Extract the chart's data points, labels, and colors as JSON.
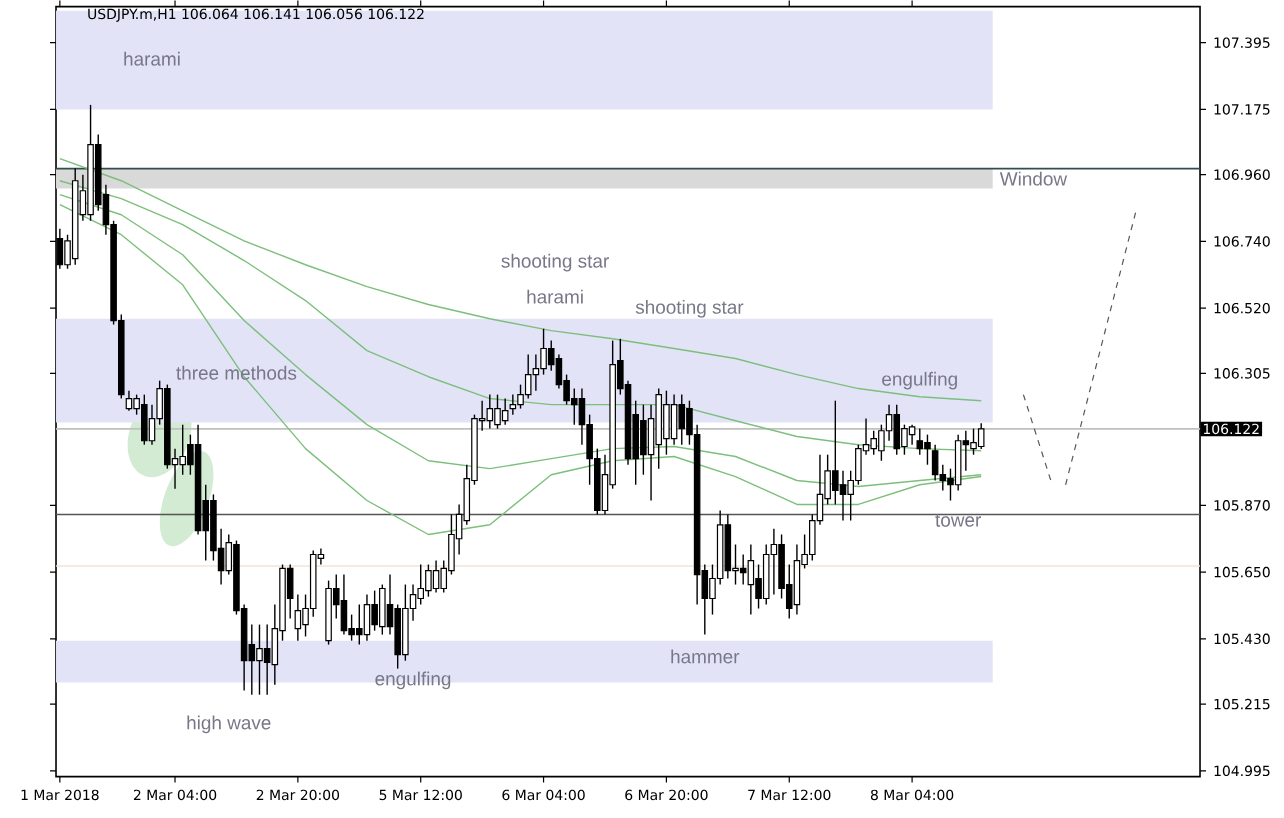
{
  "chart_data": {
    "type": "candlestick",
    "title": "USDJPY.m,H1  106.064 106.141 106.056 106.122",
    "categories": [
      "1 Mar 2018",
      null,
      null,
      null,
      null,
      null,
      null,
      null,
      null,
      null,
      null,
      null,
      null,
      null,
      null,
      "2 Mar 04:00",
      null,
      null,
      null,
      null,
      null,
      null,
      null,
      null,
      null,
      null,
      null,
      null,
      null,
      null,
      null,
      "2 Mar 20:00",
      null,
      null,
      null,
      null,
      null,
      null,
      null,
      null,
      null,
      null,
      null,
      null,
      null,
      null,
      null,
      "5 Mar 12:00",
      null,
      null,
      null,
      null,
      null,
      null,
      null,
      null,
      null,
      null,
      null,
      null,
      null,
      null,
      null,
      "6 Mar 04:00",
      null,
      null,
      null,
      null,
      null,
      null,
      null,
      null,
      null,
      null,
      null,
      null,
      null,
      null,
      null,
      "6 Mar 20:00",
      null,
      null,
      null,
      null,
      null,
      null,
      null,
      null,
      null,
      null,
      null,
      null,
      null,
      null,
      null,
      "7 Mar 12:00",
      null,
      null,
      null,
      null,
      null,
      null,
      null,
      null,
      null,
      null,
      null,
      null,
      null,
      null,
      null,
      "8 Mar 04:00",
      null,
      null,
      null,
      null,
      null,
      null,
      null,
      null,
      null,
      null,
      null,
      null,
      null,
      null,
      null,
      null,
      null,
      null,
      null,
      null,
      null,
      null,
      null,
      null,
      null,
      null,
      null,
      null,
      null,
      null,
      null,
      null,
      null,
      null,
      null,
      null,
      null
    ],
    "ohlc": [
      [
        106.749,
        106.782,
        106.65,
        106.663
      ],
      [
        106.663,
        106.762,
        106.65,
        106.742
      ],
      [
        106.683,
        106.98,
        106.663,
        106.94
      ],
      [
        106.828,
        106.96,
        106.808,
        106.907
      ],
      [
        106.828,
        107.19,
        106.808,
        107.059
      ],
      [
        107.059,
        107.092,
        106.841,
        106.861
      ],
      [
        106.894,
        106.927,
        106.762,
        106.795
      ],
      [
        106.795,
        106.808,
        106.466,
        106.479
      ],
      [
        106.479,
        106.499,
        106.222,
        106.235
      ],
      [
        106.189,
        106.248,
        106.182,
        106.222
      ],
      [
        106.189,
        106.235,
        106.169,
        106.222
      ],
      [
        106.202,
        106.235,
        106.07,
        106.083
      ],
      [
        106.083,
        106.202,
        106.07,
        106.156
      ],
      [
        106.156,
        106.281,
        106.136,
        106.255
      ],
      [
        106.255,
        106.268,
        105.991,
        106.004
      ],
      [
        106.004,
        106.057,
        105.925,
        106.024
      ],
      [
        106.004,
        106.136,
        105.971,
        106.031
      ],
      [
        106.07,
        106.103,
        105.971,
        106.004
      ],
      [
        106.07,
        106.136,
        105.774,
        105.787
      ],
      [
        105.886,
        105.938,
        105.688,
        105.787
      ],
      [
        105.886,
        105.906,
        105.688,
        105.721
      ],
      [
        105.728,
        105.793,
        105.609,
        105.655
      ],
      [
        105.655,
        105.774,
        105.642,
        105.747
      ],
      [
        105.741,
        105.754,
        105.51,
        105.523
      ],
      [
        105.53,
        105.543,
        105.26,
        105.358
      ],
      [
        105.411,
        105.477,
        105.246,
        105.358
      ],
      [
        105.358,
        105.477,
        105.246,
        105.398
      ],
      [
        105.398,
        105.477,
        105.246,
        105.352
      ],
      [
        105.345,
        105.543,
        105.279,
        105.464
      ],
      [
        105.457,
        105.675,
        105.424,
        105.662
      ],
      [
        105.662,
        105.675,
        105.497,
        105.563
      ],
      [
        105.464,
        105.576,
        105.424,
        105.523
      ],
      [
        105.477,
        105.576,
        105.438,
        105.53
      ],
      [
        105.53,
        105.721,
        105.503,
        105.708
      ],
      [
        105.695,
        105.728,
        105.675,
        105.708
      ],
      [
        105.424,
        105.622,
        105.411,
        105.596
      ],
      [
        105.596,
        105.642,
        105.497,
        105.543
      ],
      [
        105.556,
        105.642,
        105.444,
        105.457
      ],
      [
        105.464,
        105.51,
        105.424,
        105.444
      ],
      [
        105.464,
        105.543,
        105.411,
        105.444
      ],
      [
        105.444,
        105.576,
        105.424,
        105.543
      ],
      [
        105.543,
        105.589,
        105.457,
        105.477
      ],
      [
        105.47,
        105.609,
        105.444,
        105.596
      ],
      [
        105.543,
        105.642,
        105.444,
        105.47
      ],
      [
        105.53,
        105.543,
        105.332,
        105.378
      ],
      [
        105.378,
        105.609,
        105.358,
        105.53
      ],
      [
        105.53,
        105.609,
        105.49,
        105.576
      ],
      [
        105.563,
        105.675,
        105.543,
        105.596
      ],
      [
        105.589,
        105.675,
        105.569,
        105.655
      ],
      [
        105.596,
        105.688,
        105.583,
        105.655
      ],
      [
        105.596,
        105.688,
        105.583,
        105.662
      ],
      [
        105.655,
        105.84,
        105.642,
        105.774
      ],
      [
        105.76,
        105.873,
        105.708,
        105.84
      ],
      [
        105.82,
        106.004,
        105.806,
        105.958
      ],
      [
        105.952,
        106.169,
        105.938,
        106.156
      ],
      [
        106.149,
        106.215,
        106.116,
        106.156
      ],
      [
        106.149,
        106.235,
        106.123,
        106.189
      ],
      [
        106.136,
        106.235,
        106.123,
        106.189
      ],
      [
        106.149,
        106.222,
        106.136,
        106.182
      ],
      [
        106.189,
        106.235,
        106.169,
        106.202
      ],
      [
        106.202,
        106.268,
        106.189,
        106.235
      ],
      [
        106.235,
        106.367,
        106.222,
        106.301
      ],
      [
        106.301,
        106.367,
        106.248,
        106.321
      ],
      [
        106.321,
        106.452,
        106.301,
        106.387
      ],
      [
        106.387,
        106.413,
        106.314,
        106.334
      ],
      [
        106.354,
        106.367,
        106.255,
        106.268
      ],
      [
        106.281,
        106.301,
        106.202,
        106.215
      ],
      [
        106.222,
        106.255,
        106.136,
        106.202
      ],
      [
        106.222,
        106.255,
        106.07,
        106.136
      ],
      [
        106.136,
        106.169,
        105.938,
        106.024
      ],
      [
        106.024,
        106.057,
        105.84,
        105.853
      ],
      [
        105.853,
        106.037,
        105.84,
        105.971
      ],
      [
        105.938,
        106.413,
        105.925,
        106.334
      ],
      [
        106.347,
        106.419,
        106.235,
        106.255
      ],
      [
        106.268,
        106.281,
        106.004,
        106.024
      ],
      [
        106.169,
        106.215,
        105.938,
        106.024
      ],
      [
        106.149,
        106.202,
        105.971,
        106.037
      ],
      [
        106.037,
        106.202,
        105.886,
        106.156
      ],
      [
        106.07,
        106.255,
        105.991,
        106.235
      ],
      [
        106.09,
        106.248,
        106.037,
        106.202
      ],
      [
        106.09,
        106.235,
        106.07,
        106.202
      ],
      [
        106.202,
        106.235,
        106.07,
        106.123
      ],
      [
        106.189,
        106.215,
        106.07,
        106.103
      ],
      [
        106.103,
        106.136,
        105.543,
        105.642
      ],
      [
        105.655,
        105.675,
        105.444,
        105.563
      ],
      [
        105.563,
        105.675,
        105.51,
        105.629
      ],
      [
        105.629,
        105.853,
        105.609,
        105.806
      ],
      [
        105.806,
        105.84,
        105.629,
        105.655
      ],
      [
        105.655,
        105.741,
        105.609,
        105.662
      ],
      [
        105.662,
        105.708,
        105.609,
        105.648
      ],
      [
        105.609,
        105.741,
        105.51,
        105.688
      ],
      [
        105.629,
        105.675,
        105.53,
        105.563
      ],
      [
        105.563,
        105.741,
        105.543,
        105.708
      ],
      [
        105.708,
        105.793,
        105.576,
        105.741
      ],
      [
        105.741,
        105.774,
        105.563,
        105.596
      ],
      [
        105.609,
        105.675,
        105.497,
        105.53
      ],
      [
        105.543,
        105.741,
        105.51,
        105.688
      ],
      [
        105.675,
        105.774,
        105.662,
        105.708
      ],
      [
        105.708,
        105.84,
        105.688,
        105.82
      ],
      [
        105.82,
        106.037,
        105.806,
        105.906
      ],
      [
        105.892,
        106.037,
        105.873,
        105.984
      ],
      [
        105.984,
        106.215,
        105.873,
        105.919
      ],
      [
        105.938,
        105.984,
        105.82,
        105.906
      ],
      [
        105.906,
        105.984,
        105.82,
        105.952
      ],
      [
        105.952,
        106.07,
        105.938,
        106.057
      ],
      [
        106.05,
        106.156,
        106.037,
        106.07
      ],
      [
        106.057,
        106.116,
        106.037,
        106.09
      ],
      [
        106.05,
        106.136,
        106.017,
        106.116
      ],
      [
        106.116,
        106.202,
        106.083,
        106.169
      ],
      [
        106.169,
        106.202,
        106.037,
        106.057
      ],
      [
        106.064,
        106.136,
        106.037,
        106.123
      ],
      [
        106.103,
        106.136,
        106.07,
        106.129
      ],
      [
        106.083,
        106.123,
        106.037,
        106.057
      ],
      [
        106.077,
        106.103,
        106.004,
        106.057
      ],
      [
        106.05,
        106.07,
        105.952,
        105.971
      ],
      [
        105.971,
        106.004,
        105.919,
        105.952
      ],
      [
        105.958,
        105.991,
        105.886,
        105.938
      ],
      [
        105.938,
        106.103,
        105.919,
        106.083
      ],
      [
        106.083,
        106.116,
        105.984,
        106.07
      ],
      [
        106.057,
        106.123,
        106.037,
        106.077
      ],
      [
        106.064,
        106.141,
        106.056,
        106.122
      ],
      null,
      null,
      null,
      null,
      null,
      null,
      null,
      null,
      null,
      null,
      null,
      null,
      null,
      null,
      null,
      null,
      null,
      null,
      null,
      null,
      null,
      null,
      null,
      null,
      null,
      null,
      null,
      null
    ],
    "series": [
      {
        "type": "line",
        "color": "#7cbf7c",
        "values": [
          107.013,
          null,
          null,
          null,
          null,
          null,
          null,
          null,
          106.94,
          null,
          null,
          null,
          null,
          null,
          null,
          null,
          106.841,
          null,
          null,
          null,
          null,
          null,
          null,
          null,
          106.742,
          null,
          null,
          null,
          null,
          null,
          null,
          null,
          106.663,
          null,
          null,
          null,
          null,
          null,
          null,
          null,
          106.591,
          null,
          null,
          null,
          null,
          null,
          null,
          null,
          106.532,
          null,
          null,
          null,
          null,
          null,
          null,
          null,
          106.485,
          null,
          null,
          null,
          null,
          null,
          null,
          null,
          106.446,
          null,
          null,
          null,
          null,
          null,
          null,
          null,
          106.419,
          null,
          null,
          null,
          null,
          null,
          null,
          null,
          106.387,
          null,
          null,
          null,
          null,
          null,
          null,
          null,
          106.354,
          null,
          null,
          null,
          null,
          null,
          null,
          null,
          106.301,
          null,
          null,
          null,
          null,
          null,
          null,
          null,
          106.255,
          null,
          null,
          null,
          null,
          null,
          null,
          null,
          106.228,
          null,
          null,
          null,
          null,
          null,
          null,
          null,
          106.215,
          null,
          null,
          null,
          null,
          null,
          null,
          null,
          null,
          null,
          null,
          null,
          null,
          null,
          null,
          null,
          null,
          null,
          null,
          null,
          null,
          null,
          null,
          null,
          null,
          null,
          null,
          null,
          null
        ]
      },
      {
        "type": "line",
        "color": "#7cbf7c",
        "values": [
          106.94,
          null,
          null,
          null,
          null,
          null,
          null,
          null,
          106.881,
          null,
          null,
          null,
          null,
          null,
          null,
          null,
          106.795,
          null,
          null,
          null,
          null,
          null,
          null,
          null,
          106.677,
          null,
          null,
          null,
          null,
          null,
          null,
          null,
          106.545,
          null,
          null,
          null,
          null,
          null,
          null,
          null,
          106.38,
          null,
          null,
          null,
          null,
          null,
          null,
          null,
          106.294,
          null,
          null,
          null,
          null,
          null,
          null,
          null,
          106.222,
          null,
          null,
          null,
          null,
          null,
          null,
          null,
          106.202,
          null,
          null,
          null,
          null,
          null,
          null,
          null,
          106.202,
          null,
          null,
          null,
          null,
          null,
          null,
          null,
          106.202,
          null,
          null,
          null,
          null,
          null,
          null,
          null,
          106.149,
          null,
          null,
          null,
          null,
          null,
          null,
          null,
          106.097,
          null,
          null,
          null,
          null,
          null,
          null,
          null,
          106.07,
          null,
          null,
          null,
          null,
          null,
          null,
          null,
          106.057,
          null,
          null,
          null,
          null,
          null,
          null,
          null,
          106.05,
          null,
          null,
          null,
          null,
          null,
          null,
          null,
          null,
          null,
          null,
          null,
          null,
          null,
          null,
          null,
          null,
          null,
          null,
          null,
          null,
          null,
          null,
          null,
          null,
          null,
          null,
          null,
          null
        ]
      },
      {
        "type": "line",
        "color": "#7cbf7c",
        "values": [
          106.894,
          null,
          null,
          null,
          null,
          null,
          null,
          null,
          106.828,
          null,
          null,
          null,
          null,
          null,
          null,
          null,
          106.696,
          null,
          null,
          null,
          null,
          null,
          null,
          null,
          106.479,
          null,
          null,
          null,
          null,
          null,
          null,
          null,
          106.301,
          null,
          null,
          null,
          null,
          null,
          null,
          null,
          106.136,
          null,
          null,
          null,
          null,
          null,
          null,
          null,
          106.017,
          null,
          null,
          null,
          null,
          null,
          null,
          null,
          105.991,
          null,
          null,
          null,
          null,
          null,
          null,
          null,
          106.024,
          null,
          null,
          null,
          null,
          null,
          null,
          null,
          106.057,
          null,
          null,
          null,
          null,
          null,
          null,
          null,
          106.064,
          null,
          null,
          null,
          null,
          null,
          null,
          null,
          106.031,
          null,
          null,
          null,
          null,
          null,
          null,
          null,
          105.952,
          null,
          null,
          null,
          null,
          null,
          null,
          null,
          105.932,
          null,
          null,
          null,
          null,
          null,
          null,
          null,
          105.952,
          null,
          null,
          null,
          null,
          null,
          null,
          null,
          105.971,
          null,
          null,
          null,
          null,
          null,
          null,
          null,
          null,
          null,
          null,
          null,
          null,
          null,
          null,
          null,
          null,
          null,
          null,
          null,
          null,
          null,
          null,
          null,
          null,
          null,
          null,
          null,
          null
        ]
      },
      {
        "type": "line",
        "color": "#7cbf7c",
        "values": [
          106.861,
          null,
          null,
          null,
          null,
          null,
          null,
          null,
          106.762,
          null,
          null,
          null,
          null,
          null,
          null,
          null,
          106.597,
          null,
          null,
          null,
          null,
          null,
          null,
          null,
          106.294,
          null,
          null,
          null,
          null,
          null,
          null,
          null,
          106.057,
          null,
          null,
          null,
          null,
          null,
          null,
          null,
          105.886,
          null,
          null,
          null,
          null,
          null,
          null,
          null,
          105.774,
          null,
          null,
          null,
          null,
          null,
          null,
          null,
          105.806,
          null,
          null,
          null,
          null,
          null,
          null,
          null,
          105.971,
          null,
          null,
          null,
          null,
          null,
          null,
          null,
          106.017,
          null,
          null,
          null,
          null,
          null,
          null,
          null,
          106.031,
          null,
          null,
          null,
          null,
          null,
          null,
          null,
          105.965,
          null,
          null,
          null,
          null,
          null,
          null,
          null,
          105.873,
          null,
          null,
          null,
          null,
          null,
          null,
          null,
          105.873,
          null,
          null,
          null,
          null,
          null,
          null,
          null,
          105.938,
          null,
          null,
          null,
          null,
          null,
          null,
          null,
          105.965,
          null,
          null,
          null,
          null,
          null,
          null,
          null,
          null,
          null,
          null,
          null,
          null,
          null,
          null,
          null,
          null,
          null,
          null,
          null,
          null,
          null,
          null,
          null,
          null,
          null,
          null,
          null,
          null
        ]
      }
    ],
    "ylim": [
      104.976,
      107.514
    ],
    "yticks": [
      104.995,
      105.215,
      {
        "value": 105.43,
        "label": "105.430"
      },
      {
        "value": 105.65,
        "label": "105.650"
      },
      {
        "value": 105.87,
        "label": "105.870"
      },
      106.305,
      {
        "value": 106.52,
        "label": "106.520"
      },
      {
        "value": 106.74,
        "label": "106.740"
      },
      {
        "value": 106.96,
        "label": "106.960"
      },
      107.175,
      107.395
    ],
    "bands": [
      {
        "axis": "y",
        "from": 107.175,
        "to": 107.5,
        "color": "#e3e3f8"
      },
      {
        "axis": "y",
        "from": 106.143,
        "to": 106.485,
        "color": "#e3e3f8"
      },
      {
        "axis": "y",
        "from": 105.286,
        "to": 105.424,
        "color": "#e3e3f8"
      },
      {
        "axis": "y",
        "from": 106.914,
        "to": 106.98,
        "color": "#d9d9d9",
        "label": "Window"
      }
    ],
    "ref_lines": [
      {
        "axis": "y",
        "value": 106.98,
        "color": "#2f4f4f"
      },
      {
        "axis": "y",
        "value": 105.84,
        "color": "#555555"
      },
      {
        "axis": "y",
        "value": 105.67,
        "color": "#f2e4da"
      },
      {
        "axis": "y",
        "value": 106.122,
        "color": "#c0c0c0",
        "label": "106.122"
      }
    ],
    "annotations": [
      "harami",
      "three methods",
      "high wave",
      "engulfing",
      "shooting star",
      "harami",
      "shooting star",
      "engulfing",
      "hammer",
      "tower"
    ]
  }
}
